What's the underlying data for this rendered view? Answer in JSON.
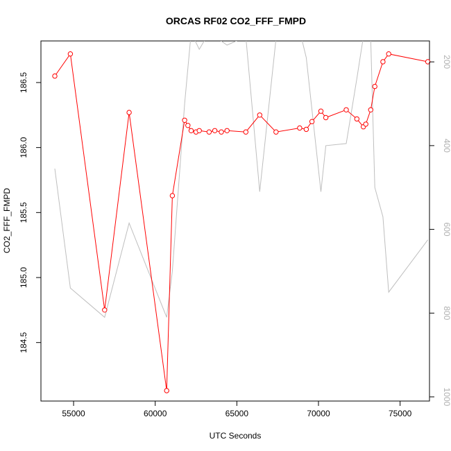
{
  "chart_data": {
    "type": "line",
    "title": "ORCAS RF02 CO2_FFF_FMPD",
    "xlabel": "UTC Seconds",
    "ylabel": "CO2_FFF_FMPD",
    "xlim": [
      53000,
      76800
    ],
    "ylim": [
      184.05,
      186.82
    ],
    "y2lim": [
      1010,
      150
    ],
    "x_ticks": [
      55000,
      60000,
      65000,
      70000,
      75000
    ],
    "x_tick_labels": [
      "55000",
      "60000",
      "65000",
      "70000",
      "75000"
    ],
    "y_ticks": [
      184.5,
      185.0,
      185.5,
      186.0,
      186.5
    ],
    "y_tick_labels": [
      "184.5",
      "185.0",
      "185.5",
      "186.0",
      "186.5"
    ],
    "y2_ticks": [
      200,
      400,
      600,
      800,
      1000
    ],
    "y2_tick_labels": [
      "200",
      "400",
      "600",
      "800",
      "1000"
    ],
    "grid": false,
    "legend": "none",
    "series": [
      {
        "axis": "left",
        "style": "line+points",
        "color": "#ff0000",
        "x": [
          53850,
          54800,
          56900,
          58400,
          60700,
          61050,
          61800,
          62000,
          62200,
          62500,
          62700,
          63300,
          63650,
          64050,
          64400,
          65550,
          66400,
          67400,
          68850,
          69250,
          69600,
          70150,
          70450,
          71700,
          72350,
          72750,
          72900,
          73200,
          73450,
          73950,
          74300,
          76700
        ],
        "y": [
          186.55,
          186.72,
          184.75,
          186.27,
          184.13,
          185.63,
          186.21,
          186.17,
          186.13,
          186.12,
          186.13,
          186.12,
          186.13,
          186.12,
          186.13,
          186.12,
          186.25,
          186.12,
          186.15,
          186.14,
          186.2,
          186.28,
          186.23,
          186.29,
          186.22,
          186.16,
          186.18,
          186.29,
          186.47,
          186.66,
          186.72,
          186.66
        ]
      },
      {
        "axis": "right",
        "style": "line",
        "color": "#bebebe",
        "x": [
          53850,
          54800,
          56900,
          58400,
          60700,
          61050,
          61800,
          62200,
          62700,
          63300,
          64400,
          65550,
          66400,
          67400,
          68850,
          69250,
          70150,
          70450,
          71700,
          72350,
          72750,
          73200,
          73450,
          73950,
          74300,
          76700
        ],
        "y": [
          455,
          740,
          810,
          585,
          810,
          700,
          300,
          130,
          170,
          130,
          160,
          140,
          510,
          145,
          125,
          190,
          510,
          400,
          395,
          240,
          140,
          145,
          500,
          570,
          750,
          625
        ]
      }
    ]
  }
}
